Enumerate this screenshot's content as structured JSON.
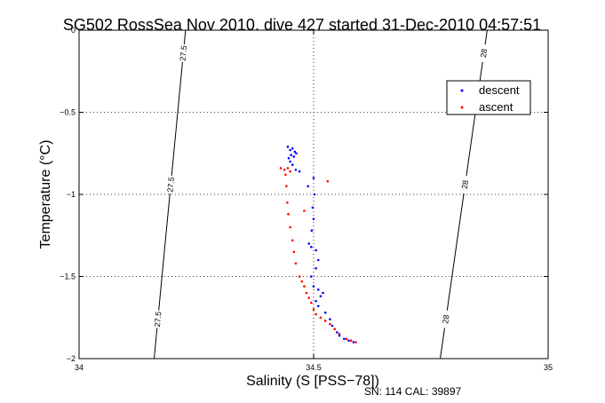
{
  "chart_data": {
    "type": "scatter",
    "title": "SG502 RossSea Nov 2010, dive 427 started 31-Dec-2010 04:57:51",
    "xlabel": "Salinity (S [PSS−78])",
    "ylabel": "Temperature (°C)",
    "footer": "SN: 114  CAL: 39897",
    "xlim": [
      34,
      35
    ],
    "ylim": [
      -2,
      0
    ],
    "x_ticks": [
      "34",
      "34.5",
      "35"
    ],
    "y_ticks": [
      "0",
      "−0.5",
      "−1",
      "−1.5",
      "−2"
    ],
    "grid": true,
    "legend_position": "top-right",
    "isopycnals": [
      {
        "label": "27.5",
        "points": [
          [
            34.227,
            0
          ],
          [
            34.16,
            -2
          ]
        ]
      },
      {
        "label": "28",
        "points": [
          [
            34.87,
            0
          ],
          [
            34.77,
            -2
          ]
        ]
      }
    ],
    "series": [
      {
        "name": "descent",
        "color": "#0000ff",
        "points": [
          [
            34.445,
            -0.71
          ],
          [
            34.45,
            -0.73
          ],
          [
            34.455,
            -0.72
          ],
          [
            34.46,
            -0.74
          ],
          [
            34.452,
            -0.76
          ],
          [
            34.447,
            -0.78
          ],
          [
            34.458,
            -0.77
          ],
          [
            34.463,
            -0.75
          ],
          [
            34.45,
            -0.8
          ],
          [
            34.455,
            -0.82
          ],
          [
            34.47,
            -0.86
          ],
          [
            34.462,
            -0.85
          ],
          [
            34.488,
            -0.95
          ],
          [
            34.5,
            -0.9
          ],
          [
            34.502,
            -1.0
          ],
          [
            34.498,
            -1.08
          ],
          [
            34.5,
            -1.15
          ],
          [
            34.496,
            -1.22
          ],
          [
            34.49,
            -1.3
          ],
          [
            34.495,
            -1.32
          ],
          [
            34.505,
            -1.34
          ],
          [
            34.51,
            -1.4
          ],
          [
            34.505,
            -1.45
          ],
          [
            34.495,
            -1.5
          ],
          [
            34.5,
            -1.56
          ],
          [
            34.51,
            -1.58
          ],
          [
            34.52,
            -1.6
          ],
          [
            34.515,
            -1.62
          ],
          [
            34.505,
            -1.65
          ],
          [
            34.51,
            -1.68
          ],
          [
            34.525,
            -1.72
          ],
          [
            34.535,
            -1.76
          ],
          [
            34.54,
            -1.8
          ],
          [
            34.55,
            -1.84
          ],
          [
            34.555,
            -1.86
          ],
          [
            34.565,
            -1.88
          ],
          [
            34.575,
            -1.89
          ],
          [
            34.585,
            -1.9
          ]
        ]
      },
      {
        "name": "ascent",
        "color": "#ff0000",
        "points": [
          [
            34.43,
            -0.84
          ],
          [
            34.438,
            -0.85
          ],
          [
            34.445,
            -0.84
          ],
          [
            34.45,
            -0.86
          ],
          [
            34.44,
            -0.88
          ],
          [
            34.442,
            -0.95
          ],
          [
            34.444,
            -1.05
          ],
          [
            34.446,
            -1.12
          ],
          [
            34.45,
            -1.2
          ],
          [
            34.455,
            -1.28
          ],
          [
            34.458,
            -1.35
          ],
          [
            34.462,
            -1.42
          ],
          [
            34.47,
            -1.5
          ],
          [
            34.475,
            -1.53
          ],
          [
            34.48,
            -1.56
          ],
          [
            34.485,
            -1.6
          ],
          [
            34.49,
            -1.63
          ],
          [
            34.495,
            -1.66
          ],
          [
            34.5,
            -1.7
          ],
          [
            34.505,
            -1.73
          ],
          [
            34.515,
            -1.75
          ],
          [
            34.525,
            -1.77
          ],
          [
            34.535,
            -1.79
          ],
          [
            34.545,
            -1.82
          ],
          [
            34.555,
            -1.85
          ],
          [
            34.57,
            -1.88
          ],
          [
            34.58,
            -1.89
          ],
          [
            34.59,
            -1.9
          ],
          [
            34.53,
            -0.92
          ],
          [
            34.48,
            -1.1
          ]
        ]
      }
    ]
  }
}
